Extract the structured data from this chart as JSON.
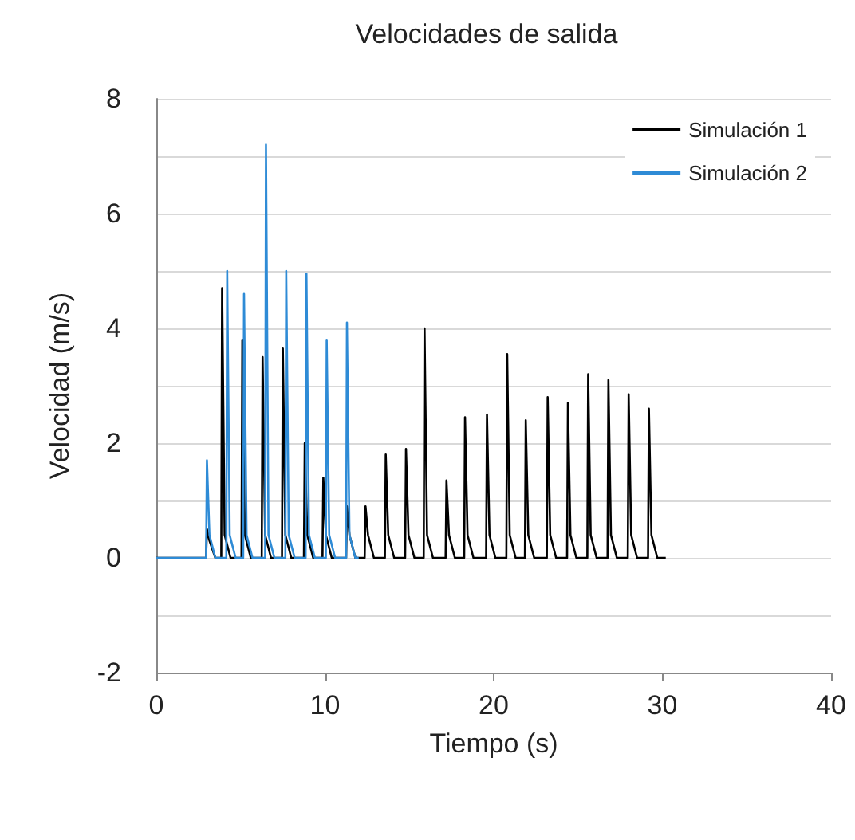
{
  "chart_data": {
    "type": "line",
    "title": "Velocidades de salida",
    "xlabel": "Tiempo (s)",
    "ylabel": "Velocidad (m/s)",
    "xlim": [
      0,
      40
    ],
    "xticks": [
      0,
      10,
      20,
      30,
      40
    ],
    "ylim": [
      -2,
      8
    ],
    "yticks": [
      -2,
      {
        "value": -1,
        "label": null
      },
      0,
      {
        "value": 1,
        "label": null
      },
      2,
      {
        "value": 3,
        "label": null
      },
      4,
      {
        "value": 5,
        "label": null
      },
      6,
      {
        "value": 7,
        "label": null
      },
      8
    ],
    "grid": "y",
    "legend": "top right",
    "marker": "none",
    "line_style": "solid",
    "series": [
      {
        "name": "Simulación 1",
        "color": "#000000",
        "x": [
          0,
          2.95,
          3.0,
          3.15,
          3.5,
          3.85,
          3.9,
          4.05,
          4.4,
          5.05,
          5.1,
          5.25,
          5.6,
          6.25,
          6.3,
          6.45,
          6.8,
          7.45,
          7.5,
          7.65,
          8.0,
          8.75,
          8.8,
          8.95,
          9.3,
          9.85,
          9.9,
          10.05,
          10.4,
          11.25,
          11.3,
          11.45,
          11.8,
          12.35,
          12.4,
          12.55,
          12.9,
          13.55,
          13.6,
          13.75,
          14.1,
          14.75,
          14.8,
          14.95,
          15.3,
          15.85,
          15.9,
          16.05,
          16.4,
          17.15,
          17.2,
          17.35,
          17.7,
          18.25,
          18.3,
          18.45,
          18.8,
          19.55,
          19.6,
          19.75,
          20.1,
          20.75,
          20.8,
          20.95,
          21.3,
          21.85,
          21.9,
          22.05,
          22.4,
          23.15,
          23.2,
          23.35,
          23.7,
          24.35,
          24.4,
          24.55,
          24.9,
          25.55,
          25.6,
          25.75,
          26.1,
          26.75,
          26.8,
          26.95,
          27.3,
          27.95,
          28.0,
          28.15,
          28.5,
          29.15,
          29.2,
          29.35,
          29.7,
          30.2
        ],
        "values": [
          0,
          0,
          0.5,
          0.3,
          0,
          0,
          4.7,
          0.4,
          0,
          0,
          3.8,
          0.4,
          0,
          0,
          3.5,
          0.4,
          0,
          0,
          3.65,
          0.4,
          0,
          0,
          2.0,
          0.4,
          0,
          0,
          1.4,
          0.4,
          0,
          0,
          0.9,
          0.4,
          0,
          0,
          0.9,
          0.4,
          0,
          0,
          1.8,
          0.4,
          0,
          0,
          1.9,
          0.4,
          0,
          0,
          4.0,
          0.4,
          0,
          0,
          1.35,
          0.4,
          0,
          0,
          2.45,
          0.4,
          0,
          0,
          2.5,
          0.4,
          0,
          0,
          3.55,
          0.4,
          0,
          0,
          2.4,
          0.4,
          0,
          0,
          2.8,
          0.4,
          0,
          0,
          2.7,
          0.4,
          0,
          0,
          3.2,
          0.4,
          0,
          0,
          3.1,
          0.4,
          0,
          0,
          2.85,
          0.4,
          0,
          0,
          2.6,
          0.4,
          0,
          0
        ]
      },
      {
        "name": "Simulación 2",
        "color": "#2e8bd6",
        "x": [
          0,
          2.95,
          3.0,
          3.15,
          3.5,
          4.15,
          4.2,
          4.35,
          4.7,
          5.15,
          5.2,
          5.35,
          5.7,
          6.45,
          6.5,
          6.65,
          7.0,
          7.65,
          7.7,
          7.85,
          8.2,
          8.85,
          8.9,
          9.05,
          9.4,
          10.05,
          10.1,
          10.25,
          10.6,
          11.25,
          11.3,
          11.45,
          11.8,
          12.0
        ],
        "values": [
          0,
          0,
          1.7,
          0.4,
          0,
          0,
          5.0,
          0.4,
          0,
          0,
          4.6,
          0.4,
          0,
          0,
          7.2,
          0.4,
          0,
          0,
          5.0,
          0.4,
          0,
          0,
          4.95,
          0.4,
          0,
          0,
          3.8,
          0.4,
          0,
          0,
          4.1,
          0.4,
          0,
          0
        ]
      }
    ]
  }
}
